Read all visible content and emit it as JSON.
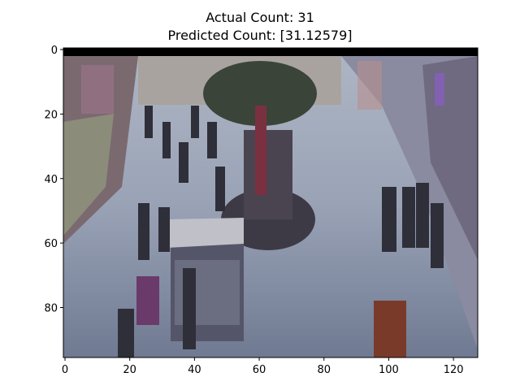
{
  "figure": {
    "title_line1": "Actual Count: 31",
    "title_line2": "Predicted Count: [31.12579]"
  },
  "image_panel": {
    "image_size": [
      128,
      96
    ],
    "content": "grayscale-tinted surveillance frame of a shopping mall walkway with many pedestrians, a central planter kiosk and storefronts"
  },
  "axes": {
    "x_ticks": [
      "0",
      "20",
      "40",
      "60",
      "80",
      "100",
      "120"
    ],
    "y_ticks": [
      "0",
      "20",
      "40",
      "60",
      "80"
    ]
  }
}
